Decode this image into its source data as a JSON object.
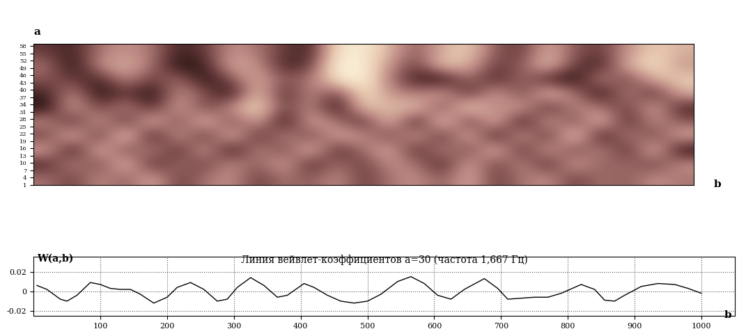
{
  "chart_data": [
    {
      "type": "heatmap",
      "y_label": "a",
      "x_label": "b",
      "xlim": [
        0,
        1000
      ],
      "ylim": [
        1,
        59
      ],
      "yticks": [
        1,
        4,
        7,
        10,
        13,
        16,
        19,
        22,
        25,
        28,
        31,
        34,
        37,
        40,
        43,
        46,
        49,
        52,
        55,
        58
      ],
      "tick_labels": "y",
      "grid": false,
      "cells": [
        [
          0.3,
          0.2,
          0.5,
          0.6,
          0.5,
          0.2,
          0.3,
          0.6,
          0.5,
          0.3,
          0.2,
          0.9,
          0.95,
          0.7,
          0.4,
          0.7,
          0.8,
          0.4,
          0.3,
          0.7,
          0.4,
          0.3,
          0.6,
          0.8,
          0.7
        ],
        [
          0.5,
          0.1,
          0.6,
          0.7,
          0.5,
          0.1,
          0.2,
          0.7,
          0.6,
          0.2,
          0.3,
          1.0,
          0.95,
          0.6,
          0.3,
          0.8,
          0.7,
          0.3,
          0.4,
          0.8,
          0.3,
          0.2,
          0.7,
          0.9,
          0.6
        ],
        [
          0.4,
          0.3,
          0.2,
          0.6,
          0.3,
          0.5,
          0.1,
          0.4,
          0.7,
          0.4,
          0.5,
          0.9,
          1.0,
          0.5,
          0.2,
          0.1,
          0.5,
          0.2,
          0.5,
          0.2,
          0.1,
          0.6,
          0.3,
          0.7,
          0.8
        ],
        [
          0.2,
          0.6,
          0.1,
          0.3,
          0.1,
          0.6,
          0.4,
          0.1,
          0.8,
          0.2,
          0.6,
          0.3,
          0.9,
          0.6,
          0.5,
          0.7,
          0.2,
          0.7,
          0.3,
          0.8,
          0.5,
          0.1,
          0.6,
          0.2,
          0.7
        ],
        [
          0.1,
          0.7,
          0.3,
          0.6,
          0.2,
          0.7,
          0.3,
          0.6,
          0.9,
          0.3,
          0.6,
          0.1,
          0.8,
          0.7,
          0.8,
          0.3,
          0.9,
          0.5,
          0.7,
          0.2,
          0.6,
          0.5,
          0.3,
          0.7,
          0.2
        ],
        [
          0.6,
          0.2,
          0.7,
          0.2,
          0.8,
          0.3,
          0.8,
          0.3,
          0.7,
          0.1,
          0.7,
          0.5,
          0.2,
          0.8,
          0.1,
          0.9,
          0.2,
          0.8,
          0.1,
          0.7,
          0.3,
          0.8,
          0.2,
          0.6,
          0.4
        ],
        [
          0.3,
          0.8,
          0.2,
          0.9,
          0.1,
          0.7,
          0.2,
          0.8,
          0.2,
          0.6,
          0.3,
          0.7,
          0.6,
          0.3,
          0.7,
          0.2,
          0.8,
          0.1,
          0.7,
          0.2,
          0.9,
          0.1,
          0.6,
          0.3,
          0.7
        ],
        [
          0.7,
          0.1,
          0.8,
          0.3,
          0.6,
          0.2,
          0.7,
          0.1,
          0.6,
          0.3,
          0.8,
          0.2,
          0.5,
          0.7,
          0.2,
          0.6,
          0.3,
          0.8,
          0.2,
          0.7,
          0.3,
          0.6,
          0.2,
          0.8,
          0.1
        ],
        [
          0.2,
          0.6,
          0.3,
          0.8,
          0.2,
          0.5,
          0.3,
          0.6,
          0.4,
          0.7,
          0.2,
          0.5,
          0.3,
          0.6,
          0.5,
          0.2,
          0.7,
          0.3,
          0.6,
          0.2,
          0.7,
          0.4,
          0.5,
          0.3,
          0.6
        ],
        [
          0.5,
          0.3,
          0.6,
          0.4,
          0.7,
          0.3,
          0.5,
          0.6,
          0.3,
          0.5,
          0.4,
          0.6,
          0.3,
          0.5,
          0.6,
          0.4,
          0.7,
          0.3,
          0.5,
          0.6,
          0.3,
          0.5,
          0.4,
          0.6,
          0.5
        ]
      ]
    },
    {
      "type": "line",
      "title": "Линия вейвлет-коэффициентов a=30 (частота 1,667 Гц)",
      "y_label": "W(a,b)",
      "x_label": "b",
      "xlim": [
        0,
        1050
      ],
      "ylim": [
        -0.025,
        0.035
      ],
      "xticks": [
        100,
        200,
        300,
        400,
        500,
        600,
        700,
        800,
        900,
        1000
      ],
      "yticks": [
        -0.02,
        0,
        0.02
      ],
      "grid": true,
      "color": "#000000",
      "x": [
        5,
        20,
        40,
        50,
        65,
        85,
        100,
        115,
        130,
        145,
        160,
        180,
        200,
        215,
        235,
        255,
        275,
        290,
        305,
        325,
        345,
        365,
        380,
        405,
        420,
        440,
        460,
        480,
        500,
        520,
        545,
        565,
        585,
        605,
        625,
        645,
        675,
        695,
        710,
        730,
        750,
        770,
        790,
        820,
        840,
        855,
        870,
        885,
        910,
        935,
        960,
        980,
        1000
      ],
      "values": [
        0.006,
        0.002,
        -0.008,
        -0.01,
        -0.004,
        0.009,
        0.007,
        0.003,
        0.002,
        0.002,
        -0.003,
        -0.012,
        -0.006,
        0.004,
        0.009,
        0.002,
        -0.01,
        -0.008,
        0.004,
        0.014,
        0.006,
        -0.006,
        -0.004,
        0.008,
        0.004,
        -0.004,
        -0.01,
        -0.012,
        -0.01,
        -0.003,
        0.01,
        0.015,
        0.008,
        -0.004,
        -0.008,
        0.002,
        0.013,
        0.003,
        -0.008,
        -0.007,
        -0.006,
        -0.006,
        -0.002,
        0.007,
        0.002,
        -0.009,
        -0.01,
        -0.004,
        0.005,
        0.008,
        0.007,
        0.003,
        -0.002
      ]
    }
  ]
}
